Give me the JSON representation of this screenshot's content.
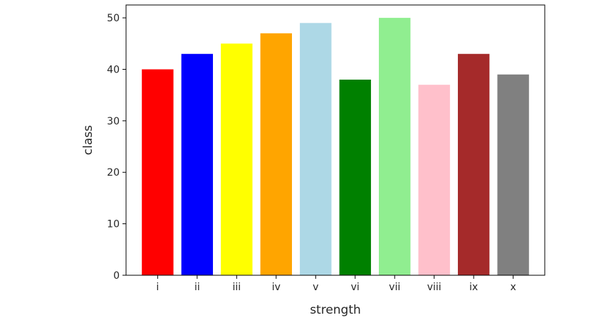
{
  "chart_data": {
    "type": "bar",
    "categories": [
      "i",
      "ii",
      "iii",
      "iv",
      "v",
      "vi",
      "vii",
      "viii",
      "ix",
      "x"
    ],
    "values": [
      40,
      43,
      45,
      47,
      49,
      38,
      50,
      37,
      43,
      39
    ],
    "colors": [
      "#ff0000",
      "#0000ff",
      "#ffff00",
      "#ffa500",
      "#add8e6",
      "#008000",
      "#90ee90",
      "#ffc0cb",
      "#a52a2a",
      "#808080"
    ],
    "xlabel": "strength",
    "ylabel": "class",
    "ylim": [
      0,
      52.5
    ],
    "yticks": [
      0,
      10,
      20,
      30,
      40,
      50
    ],
    "ytick_labels": [
      "0",
      "10",
      "20",
      "30",
      "40",
      "50"
    ],
    "grid": false,
    "legend": false
  }
}
